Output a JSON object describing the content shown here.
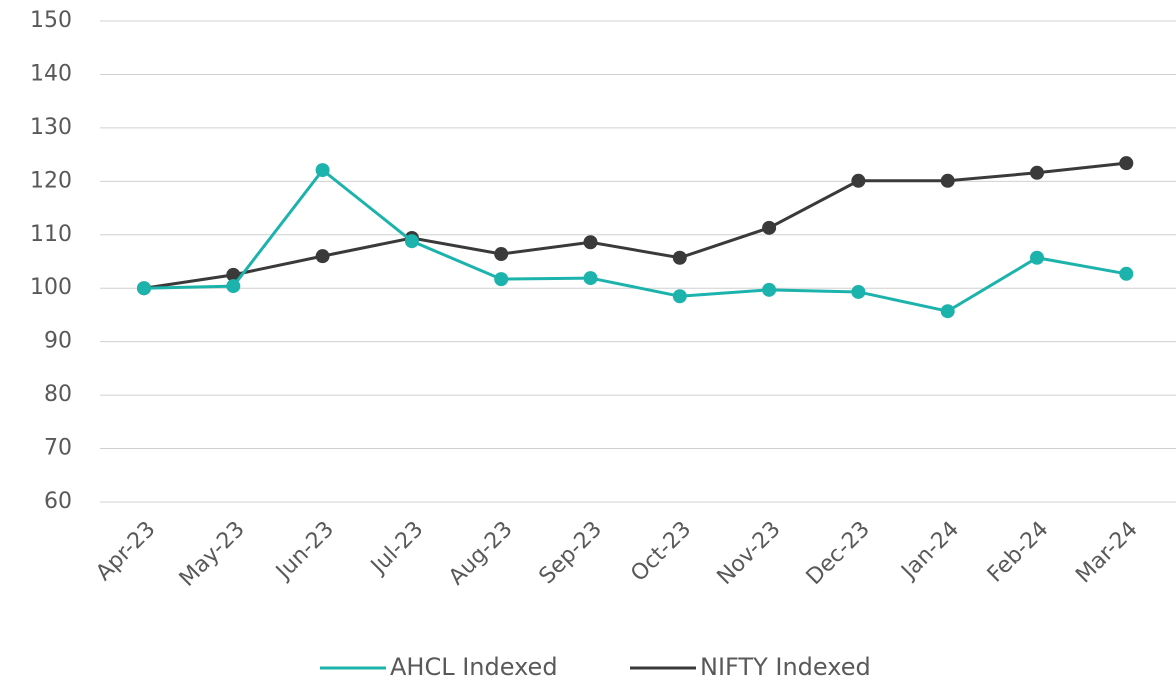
{
  "chart_data": {
    "type": "line",
    "categories": [
      "Apr-23",
      "May-23",
      "Jun-23",
      "Jul-23",
      "Aug-23",
      "Sep-23",
      "Oct-23",
      "Nov-23",
      "Dec-23",
      "Jan-24",
      "Feb-24",
      "Mar-24"
    ],
    "series": [
      {
        "name": "AHCL Indexed",
        "color": "#1db3ad",
        "values": [
          100,
          100.4,
          122.1,
          108.8,
          101.7,
          101.9,
          98.5,
          99.7,
          99.3,
          95.7,
          105.7,
          102.7
        ]
      },
      {
        "name": "NIFTY Indexed",
        "color": "#3a3a3a",
        "values": [
          100,
          102.5,
          106,
          109.4,
          106.4,
          108.6,
          105.7,
          111.3,
          120.1,
          120.1,
          121.6,
          123.4
        ]
      }
    ],
    "ylim": [
      60,
      150
    ],
    "yticks": [
      60,
      70,
      80,
      90,
      100,
      110,
      120,
      130,
      140,
      150
    ],
    "grid": true,
    "legend": "bottom"
  }
}
